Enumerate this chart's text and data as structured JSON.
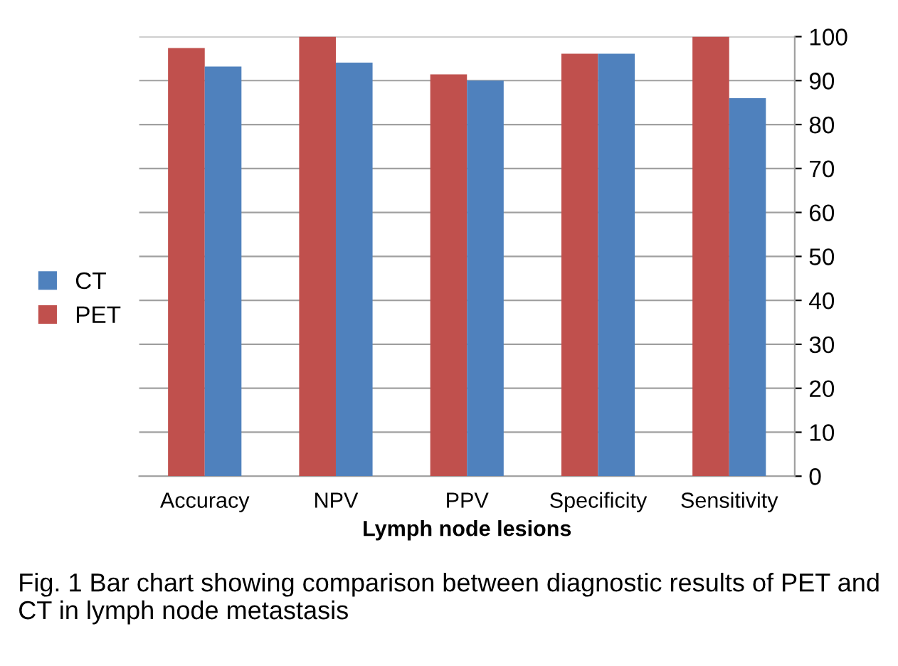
{
  "chart_data": {
    "type": "bar",
    "xlabel": "Lymph node lesions",
    "categories": [
      "Accuracy",
      "NPV",
      "PPV",
      "Specificity",
      "Sensitivity"
    ],
    "series": [
      {
        "name": "PET",
        "color": "#c0504d",
        "values": [
          97.4,
          100,
          91.4,
          96.1,
          100
        ]
      },
      {
        "name": "CT",
        "color": "#4f81bd",
        "values": [
          93.2,
          94.1,
          90,
          96.1,
          86
        ]
      }
    ],
    "ylim": [
      0,
      100
    ],
    "yticks": [
      0,
      10,
      20,
      30,
      40,
      50,
      60,
      70,
      80,
      90,
      100
    ],
    "grid": "y",
    "legend": "left",
    "annotations": [
      "Fig. 1 Bar chart showing comparison between diagnostic results of PET and CT in lymph node metastasis"
    ]
  }
}
